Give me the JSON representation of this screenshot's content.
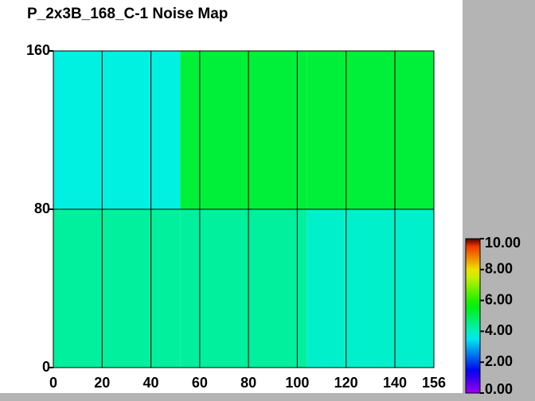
{
  "chart_data": {
    "type": "heatmap",
    "title": "P_2x3B_168_C-1 Noise Map",
    "x_edges": [
      0,
      52,
      104,
      156
    ],
    "y_edges": [
      0,
      80,
      160
    ],
    "values": [
      [
        4.3,
        4.3,
        3.9
      ],
      [
        3.7,
        5.2,
        5.2
      ]
    ],
    "xlim": [
      0,
      156
    ],
    "ylim": [
      0,
      160
    ],
    "xticks": [
      0,
      20,
      40,
      60,
      80,
      100,
      120,
      140,
      156
    ],
    "yticks": [
      0,
      80,
      160
    ],
    "grid": true,
    "colorbar": {
      "lim": [
        0,
        10
      ],
      "ticks": [
        {
          "value": 0,
          "label": "0.00"
        },
        {
          "value": 2,
          "label": "2.00"
        },
        {
          "value": 4,
          "label": "4.00"
        },
        {
          "value": 6,
          "label": "6.00"
        },
        {
          "value": 8,
          "label": "8.00"
        },
        {
          "value": 10,
          "label": "10.00"
        }
      ]
    }
  }
}
